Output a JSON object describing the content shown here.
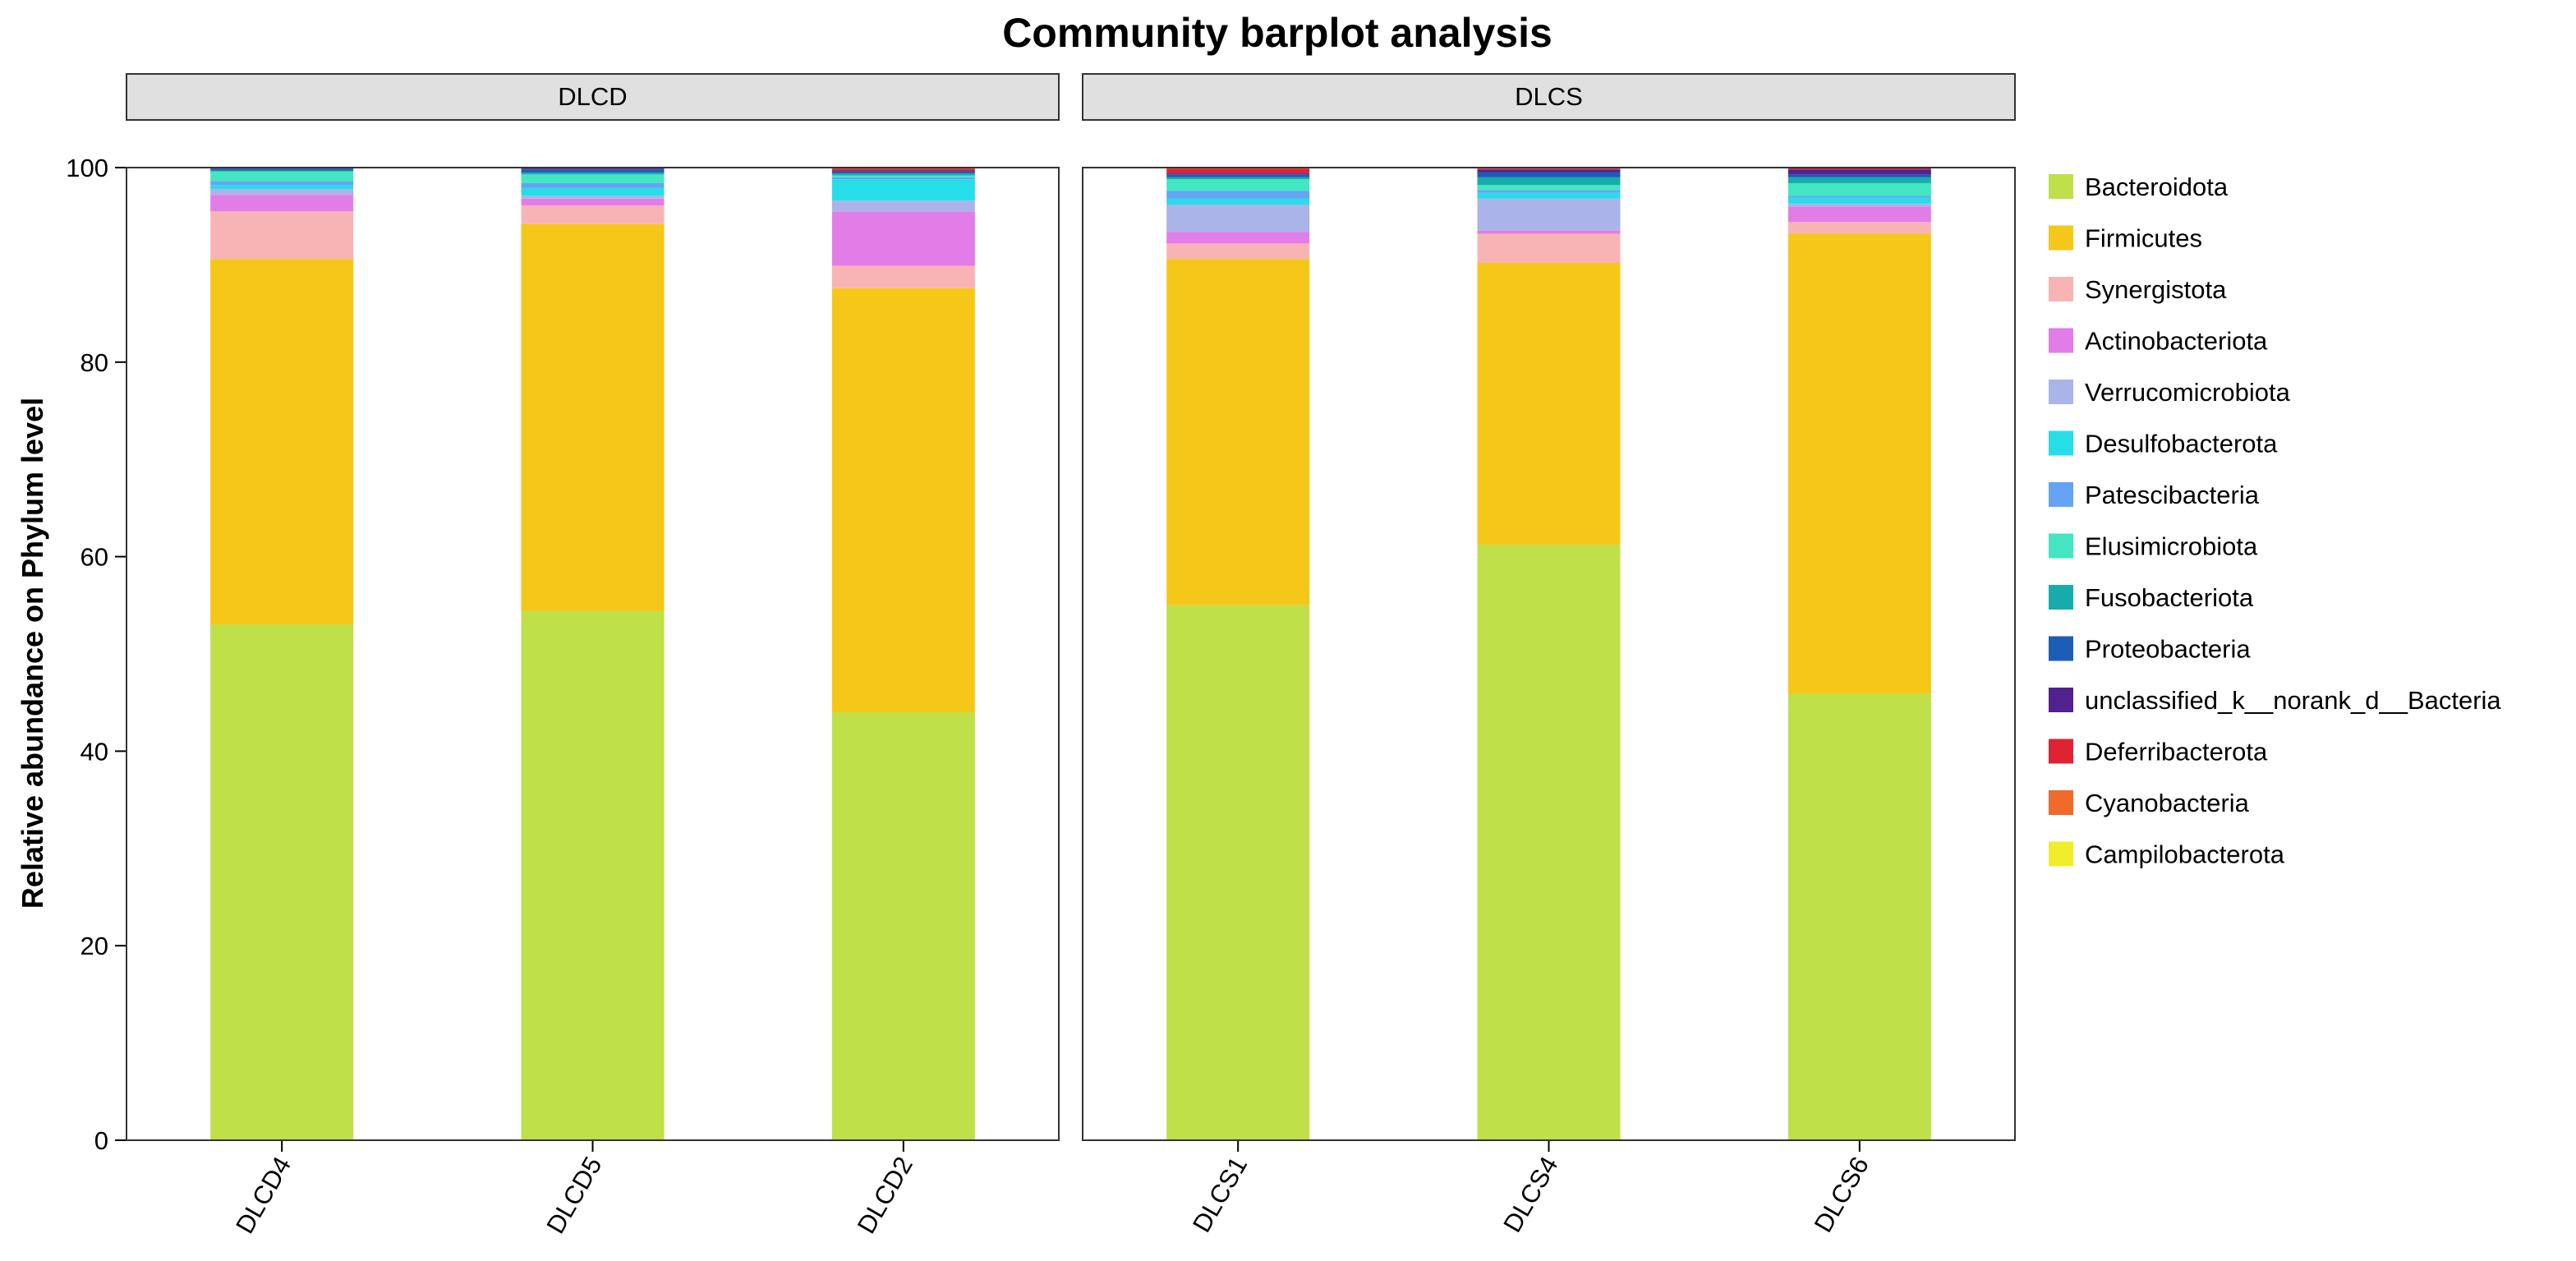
{
  "chart_data": {
    "type": "bar",
    "stacked": true,
    "title": "Community barplot analysis",
    "xlabel": "",
    "ylabel": "Relative abundance on Phylum level",
    "ylim": [
      0,
      100
    ],
    "yticks": [
      0,
      20,
      40,
      60,
      80,
      100
    ],
    "legend_position": "right",
    "panels": [
      {
        "name": "DLCD",
        "categories": [
          "DLCD4",
          "DLCD5",
          "DLCD2"
        ],
        "series": [
          {
            "name": "Bacteroidota",
            "values": [
              53.0,
              54.4,
              44.0
            ]
          },
          {
            "name": "Firmicutes",
            "values": [
              37.6,
              39.8,
              43.6
            ]
          },
          {
            "name": "Synergistota",
            "values": [
              4.9,
              1.9,
              2.3
            ]
          },
          {
            "name": "Actinobacteriota",
            "values": [
              1.7,
              0.7,
              5.6
            ]
          },
          {
            "name": "Verrucomicrobiota",
            "values": [
              0.6,
              0.3,
              1.1
            ]
          },
          {
            "name": "Desulfobacterota",
            "values": [
              0.4,
              0.8,
              2.2
            ]
          },
          {
            "name": "Patescibacteria",
            "values": [
              0.4,
              0.5,
              0.2
            ]
          },
          {
            "name": "Elusimicrobiota",
            "values": [
              1.0,
              0.9,
              0.2
            ]
          },
          {
            "name": "Fusobacteriota",
            "values": [
              0.1,
              0.2,
              0.2
            ]
          },
          {
            "name": "Proteobacteria",
            "values": [
              0.2,
              0.3,
              0.2
            ]
          },
          {
            "name": "unclassified_k__norank_d__Bacteria",
            "values": [
              0.05,
              0.1,
              0.1
            ]
          },
          {
            "name": "Deferribacterota",
            "values": [
              0.03,
              0.05,
              0.2
            ]
          },
          {
            "name": "Cyanobacteria",
            "values": [
              0.01,
              0.02,
              0.05
            ]
          },
          {
            "name": "Campilobacterota",
            "values": [
              0.01,
              0.03,
              0.05
            ]
          }
        ]
      },
      {
        "name": "DLCS",
        "categories": [
          "DLCS1",
          "DLCS4",
          "DLCS6"
        ],
        "series": [
          {
            "name": "Bacteroidota",
            "values": [
              55.0,
              61.2,
              45.9
            ]
          },
          {
            "name": "Firmicutes",
            "values": [
              35.6,
              29.0,
              47.3
            ]
          },
          {
            "name": "Synergistota",
            "values": [
              1.6,
              3.0,
              1.2
            ]
          },
          {
            "name": "Actinobacteriota",
            "values": [
              1.2,
              0.3,
              1.6
            ]
          },
          {
            "name": "Verrucomicrobiota",
            "values": [
              2.8,
              3.3,
              0.3
            ]
          },
          {
            "name": "Desulfobacterota",
            "values": [
              0.6,
              0.6,
              0.6
            ]
          },
          {
            "name": "Patescibacteria",
            "values": [
              0.8,
              0.3,
              0.2
            ]
          },
          {
            "name": "Elusimicrobiota",
            "values": [
              1.2,
              0.5,
              1.3
            ]
          },
          {
            "name": "Fusobacteriota",
            "values": [
              0.2,
              0.8,
              0.6
            ]
          },
          {
            "name": "Proteobacteria",
            "values": [
              0.3,
              0.5,
              0.3
            ]
          },
          {
            "name": "unclassified_k__norank_d__Bacteria",
            "values": [
              0.1,
              0.3,
              0.5
            ]
          },
          {
            "name": "Deferribacterota",
            "values": [
              0.5,
              0.1,
              0.2
            ]
          },
          {
            "name": "Cyanobacteria",
            "values": [
              0.05,
              0.05,
              0.0
            ]
          },
          {
            "name": "Campilobacterota",
            "values": [
              0.05,
              0.05,
              0.0
            ]
          }
        ]
      }
    ],
    "colors": {
      "Bacteroidota": "#bfe049",
      "Firmicutes": "#f5c718",
      "Synergistota": "#f8b4b4",
      "Actinobacteriota": "#e27de8",
      "Verrucomicrobiota": "#aab4e8",
      "Desulfobacterota": "#27dde8",
      "Patescibacteria": "#65a3f5",
      "Elusimicrobiota": "#43e6c0",
      "Fusobacteriota": "#17acac",
      "Proteobacteria": "#1c5db5",
      "unclassified_k__norank_d__Bacteria": "#52208f",
      "Deferribacterota": "#df2332",
      "Cyanobacteria": "#f06a2a",
      "Campilobacterota": "#f0ee2a"
    },
    "legend": [
      "Bacteroidota",
      "Firmicutes",
      "Synergistota",
      "Actinobacteriota",
      "Verrucomicrobiota",
      "Desulfobacterota",
      "Patescibacteria",
      "Elusimicrobiota",
      "Fusobacteriota",
      "Proteobacteria",
      "unclassified_k__norank_d__Bacteria",
      "Deferribacterota",
      "Cyanobacteria",
      "Campilobacterota"
    ]
  }
}
